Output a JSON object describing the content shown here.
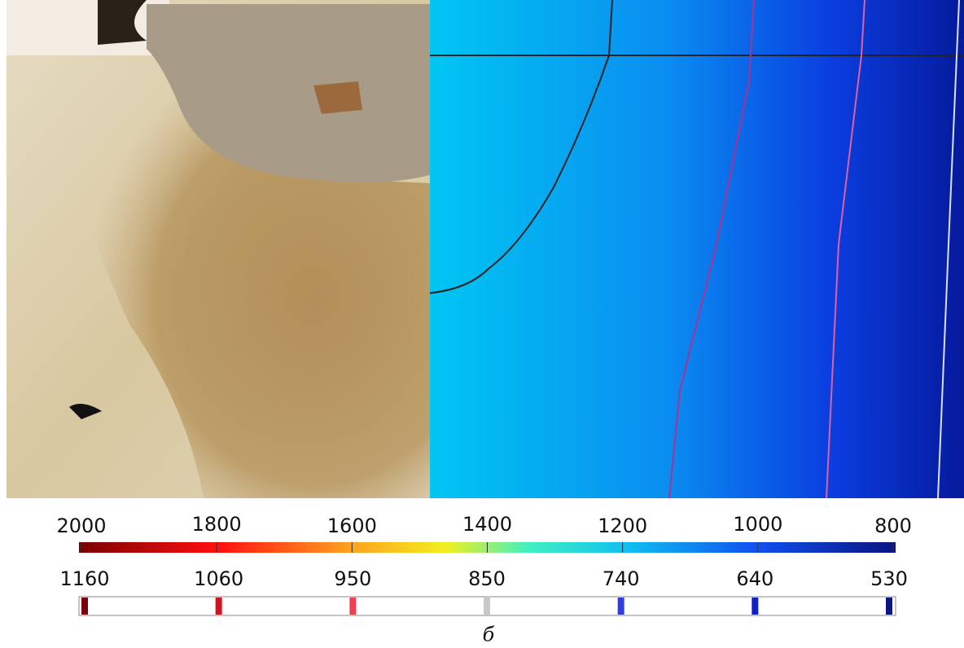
{
  "colorbar_temperature": {
    "labels": [
      "2000",
      "1800",
      "1600",
      "1400",
      "1200",
      "1000",
      "800"
    ]
  },
  "colorbar_isotherms": {
    "labels": [
      "1160",
      "1060",
      "950",
      "850",
      "740",
      "640",
      "530"
    ],
    "marker_colors": [
      "#7a0010",
      "#d8101c",
      "#f04050",
      "#c8c8c8",
      "#3040e0",
      "#1020d0",
      "#0a1880"
    ]
  },
  "caption": "б"
}
